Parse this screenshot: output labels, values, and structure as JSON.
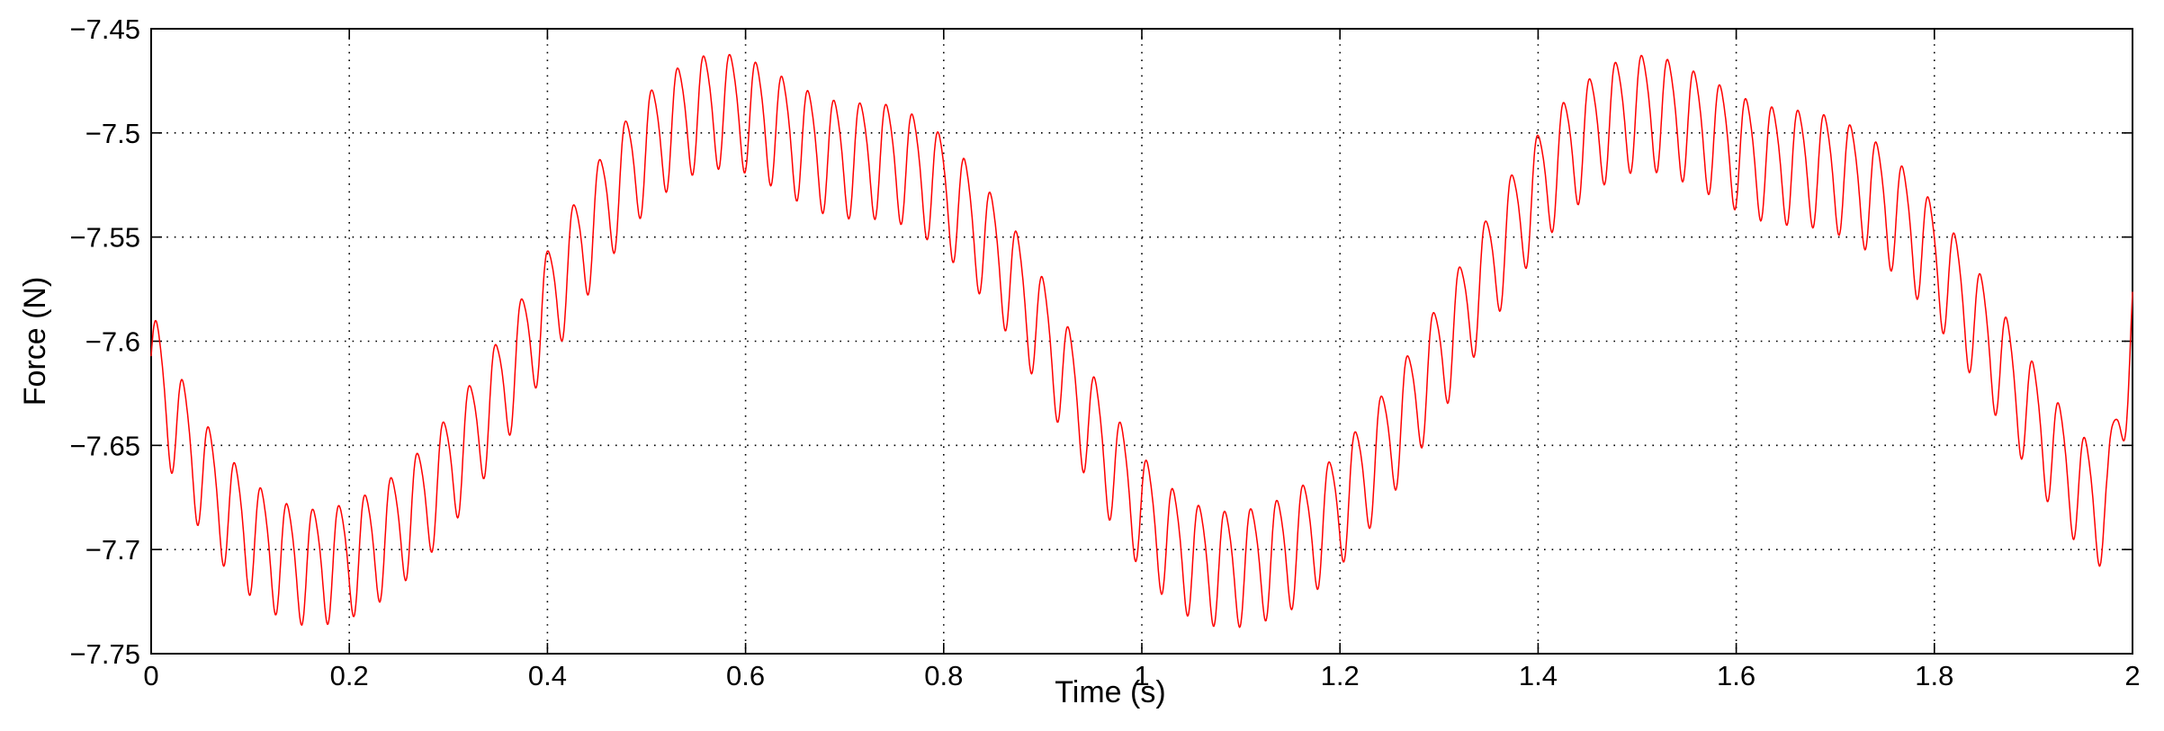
{
  "chart_data": {
    "type": "line",
    "title": "",
    "xlabel": "Time (s)",
    "ylabel": "Force (N)",
    "xlim": [
      0,
      2
    ],
    "ylim": [
      -7.75,
      -7.45
    ],
    "xticks": [
      0,
      0.2,
      0.4,
      0.6,
      0.8,
      1,
      1.2,
      1.4,
      1.6,
      1.8,
      2
    ],
    "xtick_labels": [
      "0",
      "0.2",
      "0.4",
      "0.6",
      "0.8",
      "1",
      "1.2",
      "1.4",
      "1.6",
      "1.8",
      "2"
    ],
    "yticks": [
      -7.45,
      -7.5,
      -7.55,
      -7.6,
      -7.65,
      -7.7,
      -7.75
    ],
    "ytick_labels": [
      "−7.45",
      "−7.5",
      "−7.55",
      "−7.6",
      "−7.65",
      "−7.7",
      "−7.75"
    ],
    "grid": true,
    "grid_style": "dotted",
    "line_color": "#ff0000",
    "series": [
      {
        "x": [
          0,
          0.025,
          0.05,
          0.075,
          0.1,
          0.125,
          0.15,
          0.175,
          0.2,
          0.225,
          0.25,
          0.275,
          0.3,
          0.325,
          0.35,
          0.375,
          0.4,
          0.425,
          0.45,
          0.475,
          0.5,
          0.525,
          0.55,
          0.575,
          0.6,
          0.625,
          0.65,
          0.675,
          0.7,
          0.725,
          0.75,
          0.775,
          0.8,
          0.825,
          0.85,
          0.875,
          0.9,
          0.925,
          0.95,
          0.975,
          1,
          1.025,
          1.05,
          1.075,
          1.1,
          1.125,
          1.15,
          1.175,
          1.2,
          1.225,
          1.25,
          1.275,
          1.3,
          1.325,
          1.35,
          1.375,
          1.4,
          1.425,
          1.45,
          1.475,
          1.5,
          1.525,
          1.55,
          1.575,
          1.6,
          1.625,
          1.65,
          1.675,
          1.7,
          1.725,
          1.75,
          1.775,
          1.8,
          1.825,
          1.85,
          1.875,
          1.9,
          1.925,
          1.95,
          1.975,
          2
        ],
        "values": [
          -7.61,
          -7.638,
          -7.661,
          -7.679,
          -7.692,
          -7.701,
          -7.706,
          -7.706,
          -7.703,
          -7.697,
          -7.688,
          -7.676,
          -7.661,
          -7.644,
          -7.625,
          -7.604,
          -7.582,
          -7.561,
          -7.54,
          -7.522,
          -7.507,
          -7.496,
          -7.489,
          -7.487,
          -7.489,
          -7.495,
          -7.502,
          -7.508,
          -7.511,
          -7.511,
          -7.512,
          -7.518,
          -7.527,
          -7.54,
          -7.556,
          -7.574,
          -7.595,
          -7.618,
          -7.641,
          -7.662,
          -7.68,
          -7.694,
          -7.703,
          -7.707,
          -7.707,
          -7.704,
          -7.699,
          -7.69,
          -7.678,
          -7.663,
          -7.646,
          -7.627,
          -7.607,
          -7.586,
          -7.565,
          -7.544,
          -7.526,
          -7.511,
          -7.5,
          -7.492,
          -7.488,
          -7.489,
          -7.494,
          -7.5,
          -7.507,
          -7.512,
          -7.514,
          -7.515,
          -7.518,
          -7.524,
          -7.533,
          -7.545,
          -7.56,
          -7.577,
          -7.596,
          -7.616,
          -7.636,
          -7.655,
          -7.671,
          -7.681,
          -7.588
        ],
        "oscillation_amplitude": 0.027,
        "oscillation_period": 0.0263
      }
    ]
  }
}
